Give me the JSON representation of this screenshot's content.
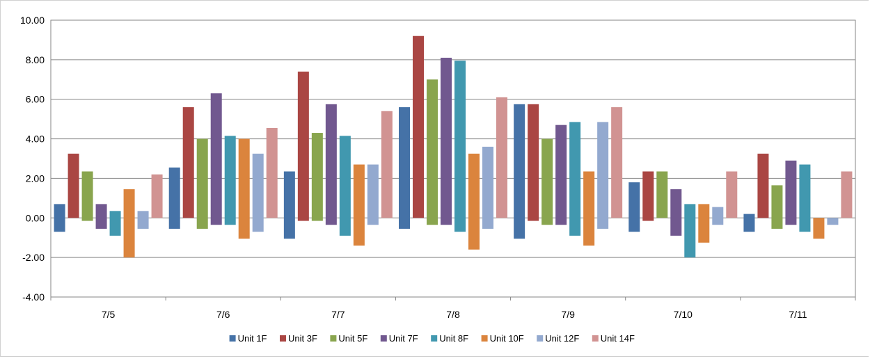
{
  "chart_data": {
    "type": "bar",
    "subtype": "floating-range",
    "categories": [
      "7/5",
      "7/6",
      "7/7",
      "7/8",
      "7/9",
      "7/10",
      "7/11"
    ],
    "series": [
      {
        "name": "Unit 1F",
        "color": "#4572A7",
        "low": [
          -0.7,
          -0.55,
          -1.05,
          -0.55,
          -1.05,
          -0.7,
          -0.7
        ],
        "high": [
          0.7,
          2.55,
          2.35,
          5.6,
          5.75,
          1.8,
          0.2
        ]
      },
      {
        "name": "Unit 3F",
        "color": "#AA4643",
        "low": [
          0,
          0,
          -0.15,
          0,
          -0.15,
          -0.15,
          0
        ],
        "high": [
          3.25,
          5.6,
          7.4,
          9.2,
          5.75,
          2.35,
          3.25
        ]
      },
      {
        "name": "Unit 5F",
        "color": "#89A54E",
        "low": [
          -0.15,
          -0.55,
          -0.15,
          -0.35,
          -0.35,
          0,
          -0.55
        ],
        "high": [
          2.35,
          4.0,
          4.3,
          7.0,
          4.0,
          2.35,
          1.65
        ]
      },
      {
        "name": "Unit 7F",
        "color": "#71588F",
        "low": [
          -0.55,
          -0.35,
          -0.35,
          -0.35,
          -0.35,
          -0.9,
          -0.35
        ],
        "high": [
          0.7,
          6.3,
          5.75,
          8.1,
          4.7,
          1.45,
          2.9
        ]
      },
      {
        "name": "Unit 8F",
        "color": "#4198AF",
        "low": [
          -0.9,
          -0.35,
          -0.9,
          -0.7,
          -0.9,
          -2.0,
          -0.7
        ],
        "high": [
          0.35,
          4.15,
          4.15,
          7.95,
          4.85,
          0.7,
          2.7
        ]
      },
      {
        "name": "Unit 10F",
        "color": "#DB843D",
        "low": [
          -2.0,
          -1.05,
          -1.4,
          -1.6,
          -1.4,
          -1.25,
          -1.05
        ],
        "high": [
          1.45,
          4.0,
          2.7,
          3.25,
          2.35,
          0.7,
          0
        ]
      },
      {
        "name": "Unit 12F",
        "color": "#93A9CF",
        "low": [
          -0.55,
          -0.7,
          -0.35,
          -0.55,
          -0.55,
          -0.35,
          -0.35
        ],
        "high": [
          0.35,
          3.25,
          2.7,
          3.6,
          4.85,
          0.55,
          0
        ]
      },
      {
        "name": "Unit 14F",
        "color": "#D19392",
        "low": [
          0,
          0,
          0,
          0,
          0,
          0,
          0
        ],
        "high": [
          2.2,
          4.55,
          5.4,
          6.1,
          5.6,
          2.35,
          2.35
        ]
      }
    ],
    "yticks": [
      "10.00",
      "8.00",
      "6.00",
      "4.00",
      "2.00",
      "0.00",
      "-2.00",
      "-4.00"
    ],
    "ylim": [
      -4,
      10
    ],
    "ytick_step": 2,
    "grid": true,
    "legend_position": "bottom",
    "title": "",
    "xlabel": "",
    "ylabel": ""
  }
}
